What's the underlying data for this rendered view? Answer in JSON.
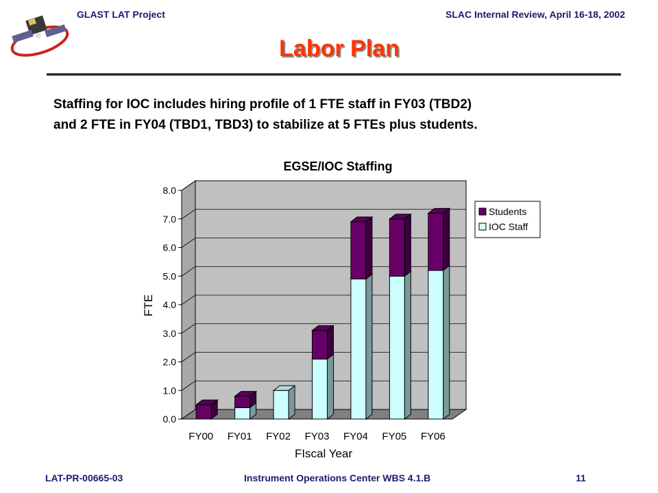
{
  "header": {
    "left": "GLAST LAT Project",
    "right": "SLAC Internal Review, April 16-18, 2002"
  },
  "slide": {
    "title": "Labor Plan",
    "intro_line1": "Staffing for IOC includes hiring profile of 1 FTE staff in FY03 (TBD2)",
    "intro_line2": "and 2 FTE in FY04 (TBD1, TBD3) to stabilize at 5 FTEs plus students."
  },
  "footer": {
    "left": "LAT-PR-00665-03",
    "center": "Instrument Operations Center WBS 4.1.B",
    "page": "11"
  },
  "chart_data": {
    "type": "bar",
    "stacked": true,
    "title": "EGSE/IOC Staffing",
    "xlabel": "FIscal Year",
    "ylabel": "FTE",
    "categories": [
      "FY00",
      "FY01",
      "FY02",
      "FY03",
      "FY04",
      "FY05",
      "FY06"
    ],
    "series": [
      {
        "name": "IOC Staff",
        "values": [
          0.0,
          0.4,
          1.0,
          2.1,
          4.9,
          5.0,
          5.2
        ],
        "color": "#ccffff"
      },
      {
        "name": "Students",
        "values": [
          0.5,
          0.4,
          0.0,
          1.0,
          2.0,
          2.0,
          2.0
        ],
        "color": "#660066"
      }
    ],
    "yticks": [
      "0.0",
      "1.0",
      "2.0",
      "3.0",
      "4.0",
      "5.0",
      "6.0",
      "7.0",
      "8.0"
    ],
    "ylim": [
      0,
      8
    ],
    "legend_order": [
      "Students",
      "IOC Staff"
    ],
    "legend_position": "right",
    "grid": true,
    "style": "3d",
    "plot_color": "#c0c0c0",
    "floor_color": "#808080"
  }
}
